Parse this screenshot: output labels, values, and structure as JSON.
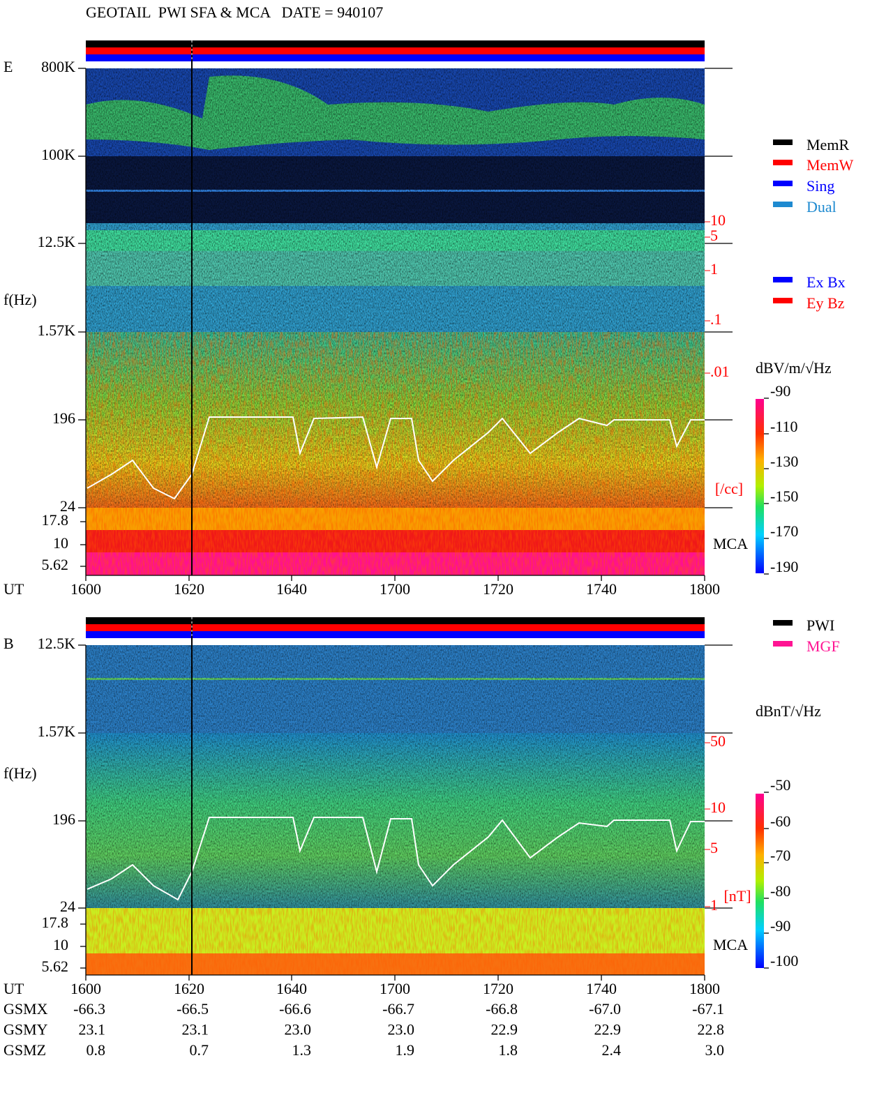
{
  "header": {
    "title": "GEOTAIL  PWI SFA & MCA   DATE = 940107"
  },
  "panels": [
    {
      "label": "E",
      "y_label": "f(Hz)",
      "freq_ticks": [
        "800K",
        "100K",
        "12.5K",
        "1.57K",
        "196",
        "24"
      ],
      "mca_ticks": [
        "17.8",
        "10",
        "5.62"
      ],
      "mca_label": "MCA",
      "density_ticks": [
        "10",
        "5",
        "1",
        ".1",
        ".01"
      ],
      "density_unit": "[/cc]",
      "colorbar_unit": "dBV/m/√Hz",
      "colorbar_ticks": [
        "-90",
        "-110",
        "-130",
        "-150",
        "-170",
        "-190"
      ],
      "legend": [
        {
          "label": "MemR",
          "color": "#000000"
        },
        {
          "label": "MemW",
          "color": "#ff0000"
        },
        {
          "label": "Sing",
          "color": "#0000ff"
        },
        {
          "label": "Dual",
          "color": "#1e8ad0"
        }
      ],
      "legend2": [
        {
          "label": "Ex Bx",
          "color": "#0000ff"
        },
        {
          "label": "Ey Bz",
          "color": "#ff0000"
        }
      ],
      "ut_label": "UT",
      "ut_ticks": [
        "1600",
        "1620",
        "1640",
        "1700",
        "1720",
        "1740",
        "1800"
      ]
    },
    {
      "label": "B",
      "y_label": "f(Hz)",
      "freq_ticks": [
        "12.5K",
        "1.57K",
        "196",
        "24"
      ],
      "mca_ticks": [
        "17.8",
        "10",
        "5.62"
      ],
      "mca_label": "MCA",
      "density_ticks": [
        "50",
        "10",
        "5",
        "1"
      ],
      "density_unit": "[nT]",
      "colorbar_unit": "dBnT/√Hz",
      "colorbar_ticks": [
        "-50",
        "-60",
        "-70",
        "-80",
        "-90",
        "-100"
      ],
      "legend": [
        {
          "label": "PWI",
          "color": "#000000"
        },
        {
          "label": "MGF",
          "color": "#ff1493"
        }
      ]
    }
  ],
  "orbit": {
    "ut_label": "UT",
    "ut_ticks": [
      "1600",
      "1620",
      "1640",
      "1700",
      "1720",
      "1740",
      "1800"
    ],
    "rows": [
      {
        "label": "GSMX",
        "values": [
          "-66.3",
          "-66.5",
          "-66.6",
          "-66.7",
          "-66.8",
          "-67.0",
          "-67.1"
        ]
      },
      {
        "label": "GSMY",
        "values": [
          "23.1",
          "23.1",
          "23.0",
          "23.0",
          "22.9",
          "22.9",
          "22.8"
        ]
      },
      {
        "label": "GSMZ",
        "values": [
          "0.8",
          "0.7",
          "1.3",
          "1.9",
          "1.8",
          "2.4",
          "3.0"
        ]
      }
    ]
  }
}
